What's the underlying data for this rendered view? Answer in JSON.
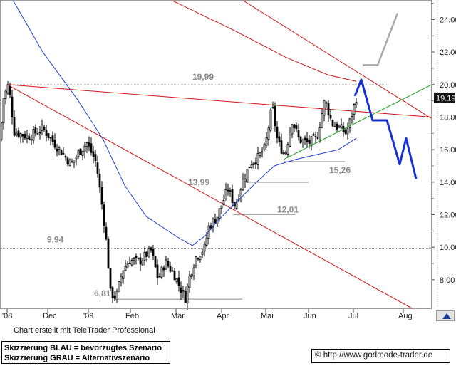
{
  "chart_data": {
    "type": "candlestick",
    "y_axis": {
      "ticks": [
        {
          "value": 8,
          "label": "8.00"
        },
        {
          "value": 10,
          "label": "10.00"
        },
        {
          "value": 12,
          "label": "12.00"
        },
        {
          "value": 14,
          "label": "14.00"
        },
        {
          "value": 16,
          "label": "16.00"
        },
        {
          "value": 18,
          "label": "18.00"
        },
        {
          "value": 20,
          "label": "20.00"
        },
        {
          "value": 22,
          "label": "22.00"
        },
        {
          "value": 24,
          "label": "24.00"
        }
      ],
      "range": [
        6.2,
        25.2
      ],
      "last_price": {
        "value": 19.19,
        "label": "19.19"
      }
    },
    "x_axis": {
      "labels": [
        "'08",
        "Dec",
        "'09",
        "Feb",
        "Mar",
        "Apr",
        "Mai",
        "Jun",
        "Jul",
        "Aug"
      ],
      "grid_x": [
        10,
        67,
        124,
        183,
        247,
        311,
        373,
        433,
        496,
        566
      ]
    },
    "levels": [
      {
        "label": "19,99",
        "value": 19.99,
        "line": "gray dotted"
      },
      {
        "label": "9,94",
        "value": 9.94,
        "line": "gray dotted"
      },
      {
        "label": "13,99",
        "value": 13.99,
        "line": "gray"
      },
      {
        "label": "12,01",
        "value": 12.01,
        "line": "gray"
      },
      {
        "label": "15,26",
        "value": 15.26,
        "line": "gray"
      },
      {
        "label": "6,81",
        "value": 6.81,
        "line": "gray"
      }
    ],
    "price_series": {
      "name": "price",
      "anchors": [
        [
          0,
          16.6
        ],
        [
          5,
          19.2
        ],
        [
          12,
          20.0
        ],
        [
          20,
          17.1
        ],
        [
          40,
          16.8
        ],
        [
          60,
          17.3
        ],
        [
          80,
          16.2
        ],
        [
          100,
          15.1
        ],
        [
          110,
          15.8
        ],
        [
          122,
          16.4
        ],
        [
          135,
          15.2
        ],
        [
          145,
          12.0
        ],
        [
          150,
          10.0
        ],
        [
          155,
          7.2
        ],
        [
          163,
          6.9
        ],
        [
          172,
          8.6
        ],
        [
          182,
          9.2
        ],
        [
          195,
          9.1
        ],
        [
          212,
          9.8
        ],
        [
          222,
          8.0
        ],
        [
          232,
          9.1
        ],
        [
          245,
          8.3
        ],
        [
          253,
          7.5
        ],
        [
          260,
          6.9
        ],
        [
          266,
          8.2
        ],
        [
          275,
          9.4
        ],
        [
          288,
          10.0
        ],
        [
          292,
          11.2
        ],
        [
          305,
          11.9
        ],
        [
          320,
          13.6
        ],
        [
          330,
          12.5
        ],
        [
          340,
          14.0
        ],
        [
          352,
          15.2
        ],
        [
          362,
          15.5
        ],
        [
          372,
          16.1
        ],
        [
          382,
          18.7
        ],
        [
          390,
          16.4
        ],
        [
          400,
          15.7
        ],
        [
          410,
          17.8
        ],
        [
          420,
          16.6
        ],
        [
          432,
          16.4
        ],
        [
          445,
          16.7
        ],
        [
          456,
          19.1
        ],
        [
          466,
          17.6
        ],
        [
          478,
          17.3
        ],
        [
          486,
          17.0
        ],
        [
          493,
          18.0
        ],
        [
          500,
          19.2
        ]
      ]
    },
    "moving_average_blue": [
      [
        18,
        25.2
      ],
      [
        60,
        22.0
      ],
      [
        110,
        19.0
      ],
      [
        145,
        16.6
      ],
      [
        175,
        13.8
      ],
      [
        205,
        11.9
      ],
      [
        250,
        10.6
      ],
      [
        270,
        10.1
      ],
      [
        288,
        10.7
      ],
      [
        305,
        11.6
      ],
      [
        330,
        12.7
      ],
      [
        360,
        14.0
      ],
      [
        385,
        15.0
      ],
      [
        415,
        15.4
      ],
      [
        445,
        15.7
      ],
      [
        475,
        16.0
      ],
      [
        500,
        16.7
      ]
    ],
    "moving_average_red": [
      [
        240,
        25.2
      ],
      [
        330,
        23.3
      ],
      [
        400,
        21.7
      ],
      [
        460,
        20.6
      ],
      [
        500,
        20.2
      ]
    ],
    "trendlines_red": [
      [
        [
          10,
          20.0
        ],
        [
          606,
          18.0
        ]
      ],
      [
        [
          10,
          20.0
        ],
        [
          580,
          6.2
        ]
      ],
      [
        [
          340,
          25.2
        ],
        [
          606,
          17.9
        ]
      ]
    ],
    "trendline_green": [
      [
        398,
        15.4
      ],
      [
        606,
        20.0
      ]
    ],
    "scenario_blue": {
      "label": "BLAU",
      "points": [
        [
          498,
          19.3
        ],
        [
          507,
          20.3
        ],
        [
          523,
          17.8
        ],
        [
          543,
          17.8
        ],
        [
          561,
          15.1
        ],
        [
          570,
          16.7
        ],
        [
          584,
          14.2
        ]
      ]
    },
    "scenario_gray": {
      "label": "GRAU",
      "points": [
        [
          509,
          21.2
        ],
        [
          530,
          21.2
        ],
        [
          558,
          24.4
        ]
      ]
    }
  },
  "footer": {
    "credit": "Chart erstellt mit TeleTrader Professional",
    "legend_line1": "Skizzierung BLAU = bevorzugtes Szenario",
    "legend_line2": "Skizzierung GRAU = Alternativszenario",
    "url": "http://www.godmode-trader.de",
    "url_icon": "copyright-icon",
    "corner_icon": "arrow-icon"
  }
}
